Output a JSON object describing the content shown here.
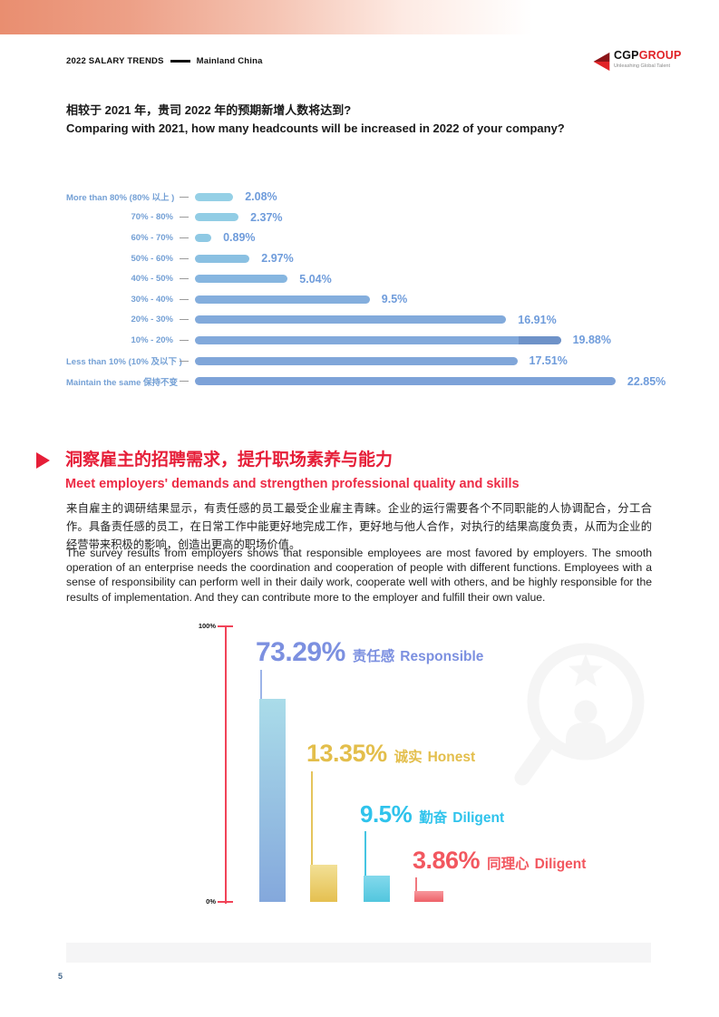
{
  "header": {
    "title_main": "2022 SALARY TRENDS",
    "title_region": "Mainland China",
    "logo": {
      "cgp": "CGP",
      "group": "GROUP",
      "tagline": "Unleashing Global Talent"
    }
  },
  "question": {
    "zh": "相较于 2021 年，贵司 2022 年的预期新增人数将达到?",
    "en": "Comparing with 2021, how many headcounts will be increased in 2022 of your company?"
  },
  "chart_data": [
    {
      "type": "bar",
      "orientation": "horizontal",
      "categories": [
        "More than 80% (80% 以上 )",
        "70% - 80%",
        "60% - 70%",
        "50% - 60%",
        "40% - 50%",
        "30% - 40%",
        "20% - 30%",
        "10% - 20%",
        "Less than 10% (10% 及以下 )",
        "Maintain the same 保持不变"
      ],
      "values": [
        2.08,
        2.37,
        0.89,
        2.97,
        5.04,
        9.5,
        16.91,
        19.88,
        17.51,
        22.85
      ],
      "value_labels": [
        "2.08%",
        "2.37%",
        "0.89%",
        "2.97%",
        "5.04%",
        "9.5%",
        "16.91%",
        "19.88%",
        "17.51%",
        "22.85%"
      ],
      "xlim": [
        0,
        25
      ],
      "bar_colors": [
        "#95d0e6",
        "#92cde5",
        "#8fc9e4",
        "#8ac0e2",
        "#86b6e0",
        "#84aedd",
        "#82aadb",
        "#82a9db",
        "#80a6d9",
        "#7da2d8"
      ],
      "value_color": "#6f9cdb",
      "label_color": "#74a0d5",
      "highlight_segment": {
        "category": "10% - 20%",
        "index": 7,
        "color": "#6e92c8"
      }
    },
    {
      "type": "bar",
      "orientation": "vertical",
      "categories": [
        "责任感 Responsible",
        "诚实 Honest",
        "勤奋 Diligent",
        "同理心 Diligent"
      ],
      "categories_zh": [
        "责任感",
        "诚实",
        "勤奋",
        "同理心"
      ],
      "categories_en": [
        "Responsible",
        "Honest",
        "Diligent",
        "Diligent"
      ],
      "values": [
        73.29,
        13.35,
        9.5,
        3.86
      ],
      "value_labels": [
        "73.29%",
        "13.35%",
        "9.5%",
        "3.86%"
      ],
      "ylim": [
        0,
        100
      ],
      "axis_tick_labels": [
        "100%",
        "0%"
      ],
      "axis_color": "#f14358",
      "label_colors": [
        "#7c90e0",
        "#e3be4b",
        "#2fc3ec",
        "#f2575f"
      ],
      "leader_colors": [
        "#9cb4e8",
        "#e5c45c",
        "#45c5e2",
        "#f0787e"
      ],
      "bar_gradients": [
        [
          "#aadce9",
          "#84a8dc"
        ],
        [
          "#f2e096",
          "#e5c050"
        ],
        [
          "#83d9ec",
          "#52c6de"
        ],
        [
          "#f7989d",
          "#ee6168"
        ]
      ]
    }
  ],
  "section": {
    "title_zh": "洞察雇主的招聘需求，提升职场素养与能力",
    "title_en": "Meet employers' demands and strengthen professional quality and skills",
    "para_zh": "来自雇主的调研结果显示，有责任感的员工最受企业雇主青睐。企业的运行需要各个不同职能的人协调配合，分工合作。具备责任感的员工，在日常工作中能更好地完成工作，更好地与他人合作，对执行的结果高度负责，从而为企业的经营带来积极的影响，创造出更高的职场价值。",
    "para_en": "The survey results from employers shows that responsible employees are most favored by employers. The smooth operation of an enterprise needs the coordination and cooperation of people with different functions. Employees with a sense of responsibility can perform well in their daily work, cooperate well with others, and be highly responsible for the results of implementation. And they can contribute more to the employer and fulfill their own value."
  },
  "footer": {
    "page_number": "5"
  }
}
